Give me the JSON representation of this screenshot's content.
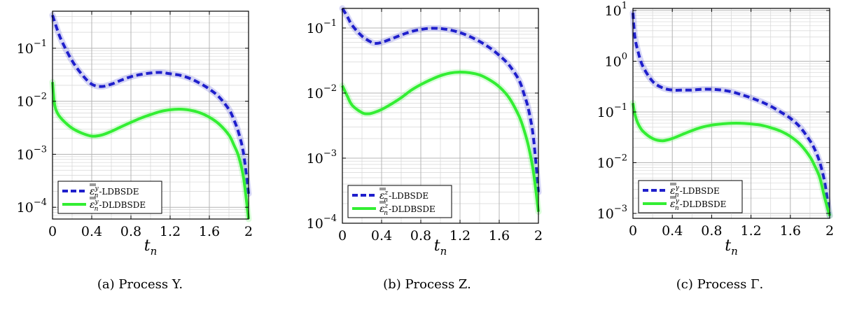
{
  "chart_data": [
    {
      "type": "line",
      "caption": "(a) Process Y.",
      "xlabel": "t_n",
      "xlim": [
        0,
        2
      ],
      "xticks": [
        "0",
        "0.4",
        "0.8",
        "1.2",
        "1.6",
        "2"
      ],
      "yscale": "log",
      "ylim": [
        6e-05,
        0.5
      ],
      "yticks": [
        {
          "base": "10",
          "exp": "−4",
          "value": 0.0001
        },
        {
          "base": "10",
          "exp": "−3",
          "value": 0.001
        },
        {
          "base": "10",
          "exp": "−2",
          "value": 0.01
        },
        {
          "base": "10",
          "exp": "−1",
          "value": 0.1
        }
      ],
      "grid": true,
      "legend_position": "bottom-left",
      "series": [
        {
          "name": "-LDBSDE",
          "symbol": "y",
          "color": "#1f1fcc",
          "style": "dashed",
          "x": [
            0,
            0.05,
            0.1,
            0.2,
            0.3,
            0.4,
            0.5,
            0.6,
            0.7,
            0.8,
            0.9,
            1.0,
            1.1,
            1.2,
            1.3,
            1.4,
            1.5,
            1.6,
            1.7,
            1.8,
            1.85,
            1.9,
            1.95,
            2.0
          ],
          "y": [
            0.42,
            0.22,
            0.13,
            0.058,
            0.032,
            0.021,
            0.019,
            0.021,
            0.025,
            0.029,
            0.032,
            0.034,
            0.035,
            0.033,
            0.031,
            0.027,
            0.022,
            0.017,
            0.012,
            0.007,
            0.0045,
            0.0025,
            0.001,
            0.00018
          ]
        },
        {
          "name": "-DLDBSDE",
          "symbol": "y",
          "color": "#33ee33",
          "style": "solid",
          "x": [
            0,
            0.02,
            0.05,
            0.1,
            0.2,
            0.3,
            0.4,
            0.5,
            0.6,
            0.7,
            0.8,
            0.9,
            1.0,
            1.1,
            1.2,
            1.3,
            1.4,
            1.5,
            1.6,
            1.7,
            1.8,
            1.85,
            1.9,
            1.95,
            2.0
          ],
          "y": [
            0.023,
            0.009,
            0.006,
            0.0045,
            0.0031,
            0.0025,
            0.0022,
            0.0023,
            0.0027,
            0.0033,
            0.004,
            0.0048,
            0.0056,
            0.0064,
            0.0069,
            0.0071,
            0.0068,
            0.0061,
            0.005,
            0.0037,
            0.0023,
            0.0015,
            0.0009,
            0.00035,
            6e-05
          ]
        }
      ]
    },
    {
      "type": "line",
      "caption": "(b) Process Z.",
      "xlabel": "t_n",
      "xlim": [
        0,
        2
      ],
      "xticks": [
        "0",
        "0.4",
        "0.8",
        "1.2",
        "1.6",
        "2"
      ],
      "yscale": "log",
      "ylim": [
        0.0001,
        0.2
      ],
      "yticks": [
        {
          "base": "10",
          "exp": "−4",
          "value": 0.0001
        },
        {
          "base": "10",
          "exp": "−3",
          "value": 0.001
        },
        {
          "base": "10",
          "exp": "−2",
          "value": 0.01
        },
        {
          "base": "10",
          "exp": "−1",
          "value": 0.1
        }
      ],
      "grid": true,
      "legend_position": "bottom-left",
      "series": [
        {
          "name": "-LDBSDE",
          "symbol": "z",
          "color": "#1f1fcc",
          "style": "dashed",
          "x": [
            0,
            0.05,
            0.1,
            0.2,
            0.3,
            0.35,
            0.4,
            0.5,
            0.6,
            0.7,
            0.8,
            0.9,
            1.0,
            1.1,
            1.2,
            1.3,
            1.4,
            1.5,
            1.6,
            1.7,
            1.8,
            1.85,
            1.9,
            1.95,
            2.0
          ],
          "y": [
            0.2,
            0.15,
            0.11,
            0.075,
            0.06,
            0.058,
            0.06,
            0.068,
            0.078,
            0.088,
            0.095,
            0.099,
            0.098,
            0.093,
            0.085,
            0.074,
            0.062,
            0.05,
            0.038,
            0.027,
            0.016,
            0.01,
            0.0055,
            0.002,
            0.0003
          ]
        },
        {
          "name": "-DLDBSDE",
          "symbol": "z",
          "color": "#33ee33",
          "style": "solid",
          "x": [
            0,
            0.05,
            0.1,
            0.2,
            0.25,
            0.3,
            0.4,
            0.5,
            0.6,
            0.7,
            0.8,
            0.9,
            1.0,
            1.1,
            1.2,
            1.3,
            1.4,
            1.5,
            1.6,
            1.7,
            1.8,
            1.85,
            1.9,
            1.95,
            2.0
          ],
          "y": [
            0.013,
            0.009,
            0.0065,
            0.005,
            0.0048,
            0.0049,
            0.0056,
            0.0068,
            0.0085,
            0.011,
            0.0135,
            0.016,
            0.0185,
            0.0203,
            0.021,
            0.0205,
            0.019,
            0.016,
            0.0125,
            0.0085,
            0.0045,
            0.0028,
            0.0015,
            0.0006,
            0.00015
          ]
        }
      ]
    },
    {
      "type": "line",
      "caption": "(c) Process Γ.",
      "xlabel": "t_n",
      "xlim": [
        0,
        2
      ],
      "xticks": [
        "0",
        "0.4",
        "0.8",
        "1.2",
        "1.6",
        "2"
      ],
      "yscale": "log",
      "ylim": [
        0.0008,
        11
      ],
      "yticks": [
        {
          "base": "10",
          "exp": "−3",
          "value": 0.001
        },
        {
          "base": "10",
          "exp": "−2",
          "value": 0.01
        },
        {
          "base": "10",
          "exp": "−1",
          "value": 0.1
        },
        {
          "base": "10",
          "exp": "0",
          "value": 1
        },
        {
          "base": "10",
          "exp": "1",
          "value": 10
        }
      ],
      "grid": true,
      "legend_position": "bottom-left",
      "series": [
        {
          "name": "-LDBSDE",
          "symbol": "γ",
          "color": "#1f1fcc",
          "style": "dashed",
          "x": [
            0,
            0.02,
            0.05,
            0.1,
            0.2,
            0.3,
            0.4,
            0.5,
            0.6,
            0.7,
            0.8,
            0.9,
            1.0,
            1.1,
            1.2,
            1.3,
            1.4,
            1.5,
            1.6,
            1.7,
            1.8,
            1.85,
            1.9,
            1.95,
            2.0
          ],
          "y": [
            9,
            3,
            1.6,
            0.8,
            0.4,
            0.3,
            0.27,
            0.27,
            0.27,
            0.28,
            0.28,
            0.27,
            0.25,
            0.22,
            0.19,
            0.16,
            0.13,
            0.1,
            0.075,
            0.05,
            0.027,
            0.018,
            0.01,
            0.004,
            0.0009
          ]
        },
        {
          "name": "-DLDBSDE",
          "symbol": "γ",
          "color": "#33ee33",
          "style": "solid",
          "x": [
            0,
            0.02,
            0.05,
            0.1,
            0.2,
            0.3,
            0.4,
            0.5,
            0.6,
            0.7,
            0.8,
            0.9,
            1.0,
            1.1,
            1.2,
            1.3,
            1.4,
            1.5,
            1.6,
            1.7,
            1.8,
            1.85,
            1.9,
            1.95,
            2.0
          ],
          "y": [
            0.15,
            0.09,
            0.06,
            0.042,
            0.03,
            0.027,
            0.03,
            0.036,
            0.043,
            0.05,
            0.055,
            0.058,
            0.06,
            0.06,
            0.058,
            0.055,
            0.049,
            0.042,
            0.033,
            0.023,
            0.013,
            0.0085,
            0.005,
            0.002,
            0.0009
          ]
        }
      ]
    }
  ]
}
